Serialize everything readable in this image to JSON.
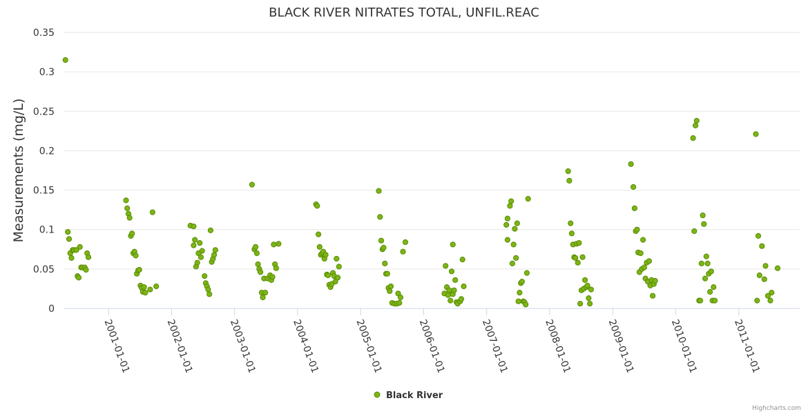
{
  "chart_data": {
    "type": "scatter",
    "title": "BLACK RIVER NITRATES TOTAL, UNFIL.REAC",
    "ylabel": "Measurements (mg/L)",
    "xlabel": "",
    "ylim": [
      0,
      0.35
    ],
    "yticks": [
      "0",
      "0.05",
      "0.1",
      "0.15",
      "0.2",
      "0.25",
      "0.3",
      "0.35"
    ],
    "xticks": [
      "2001-01-01",
      "2002-01-01",
      "2003-01-01",
      "2004-01-01",
      "2005-01-01",
      "2006-01-01",
      "2007-01-01",
      "2008-01-01",
      "2009-01-01",
      "2010-01-01",
      "2011-01-01"
    ],
    "xrange": [
      "2000-04-15",
      "2011-12-20"
    ],
    "grid": true,
    "legend_position": "bottom-center",
    "series": [
      {
        "name": "Black River",
        "color": "#7cb518",
        "points": [
          [
            "2000-04-26",
            0.315
          ],
          [
            "2000-05-10",
            0.097
          ],
          [
            "2000-05-17",
            0.088
          ],
          [
            "2000-05-24",
            0.07
          ],
          [
            "2000-05-31",
            0.064
          ],
          [
            "2000-06-07",
            0.074
          ],
          [
            "2000-06-14",
            0.074
          ],
          [
            "2000-06-28",
            0.074
          ],
          [
            "2000-07-05",
            0.041
          ],
          [
            "2000-07-12",
            0.039
          ],
          [
            "2000-07-19",
            0.078
          ],
          [
            "2000-07-26",
            0.052
          ],
          [
            "2000-08-02",
            0.052
          ],
          [
            "2000-08-16",
            0.052
          ],
          [
            "2000-08-23",
            0.049
          ],
          [
            "2000-08-30",
            0.07
          ],
          [
            "2000-09-06",
            0.065
          ],
          [
            "2001-04-12",
            0.137
          ],
          [
            "2001-04-19",
            0.127
          ],
          [
            "2001-04-26",
            0.12
          ],
          [
            "2001-05-03",
            0.115
          ],
          [
            "2001-05-10",
            0.092
          ],
          [
            "2001-05-17",
            0.095
          ],
          [
            "2001-05-24",
            0.07
          ],
          [
            "2001-05-31",
            0.072
          ],
          [
            "2001-06-07",
            0.067
          ],
          [
            "2001-06-14",
            0.044
          ],
          [
            "2001-06-21",
            0.048
          ],
          [
            "2001-06-28",
            0.049
          ],
          [
            "2001-07-05",
            0.029
          ],
          [
            "2001-07-12",
            0.026
          ],
          [
            "2001-07-19",
            0.021
          ],
          [
            "2001-07-26",
            0.027
          ],
          [
            "2001-08-02",
            0.02
          ],
          [
            "2001-08-30",
            0.024
          ],
          [
            "2001-09-13",
            0.122
          ],
          [
            "2001-10-04",
            0.028
          ],
          [
            "2002-04-20",
            0.105
          ],
          [
            "2002-05-09",
            0.104
          ],
          [
            "2002-05-09",
            0.08
          ],
          [
            "2002-05-16",
            0.087
          ],
          [
            "2002-05-23",
            0.053
          ],
          [
            "2002-05-30",
            0.058
          ],
          [
            "2002-06-06",
            0.07
          ],
          [
            "2002-06-13",
            0.083
          ],
          [
            "2002-06-20",
            0.065
          ],
          [
            "2002-06-27",
            0.073
          ],
          [
            "2002-07-11",
            0.041
          ],
          [
            "2002-07-18",
            0.032
          ],
          [
            "2002-07-25",
            0.028
          ],
          [
            "2002-08-01",
            0.024
          ],
          [
            "2002-08-08",
            0.018
          ],
          [
            "2002-08-15",
            0.099
          ],
          [
            "2002-08-22",
            0.059
          ],
          [
            "2002-08-29",
            0.063
          ],
          [
            "2002-09-05",
            0.068
          ],
          [
            "2002-09-12",
            0.074
          ],
          [
            "2003-04-12",
            0.157
          ],
          [
            "2003-04-26",
            0.075
          ],
          [
            "2003-05-03",
            0.078
          ],
          [
            "2003-05-10",
            0.07
          ],
          [
            "2003-05-17",
            0.056
          ],
          [
            "2003-05-24",
            0.05
          ],
          [
            "2003-05-31",
            0.046
          ],
          [
            "2003-06-07",
            0.02
          ],
          [
            "2003-06-14",
            0.014
          ],
          [
            "2003-06-21",
            0.038
          ],
          [
            "2003-06-28",
            0.02
          ],
          [
            "2003-07-12",
            0.038
          ],
          [
            "2003-07-26",
            0.042
          ],
          [
            "2003-08-02",
            0.036
          ],
          [
            "2003-08-09",
            0.04
          ],
          [
            "2003-08-16",
            0.081
          ],
          [
            "2003-08-23",
            0.056
          ],
          [
            "2003-08-30",
            0.051
          ],
          [
            "2003-09-13",
            0.082
          ],
          [
            "2004-04-17",
            0.132
          ],
          [
            "2004-04-24",
            0.13
          ],
          [
            "2004-05-01",
            0.094
          ],
          [
            "2004-05-08",
            0.078
          ],
          [
            "2004-05-15",
            0.068
          ],
          [
            "2004-05-22",
            0.07
          ],
          [
            "2004-05-29",
            0.072
          ],
          [
            "2004-06-05",
            0.063
          ],
          [
            "2004-06-12",
            0.068
          ],
          [
            "2004-06-19",
            0.043
          ],
          [
            "2004-06-26",
            0.042
          ],
          [
            "2004-07-03",
            0.03
          ],
          [
            "2004-07-10",
            0.027
          ],
          [
            "2004-07-17",
            0.031
          ],
          [
            "2004-07-24",
            0.045
          ],
          [
            "2004-07-31",
            0.041
          ],
          [
            "2004-08-07",
            0.034
          ],
          [
            "2004-08-14",
            0.063
          ],
          [
            "2004-08-21",
            0.039
          ],
          [
            "2004-08-28",
            0.053
          ],
          [
            "2005-04-16",
            0.149
          ],
          [
            "2005-04-23",
            0.116
          ],
          [
            "2005-04-30",
            0.086
          ],
          [
            "2005-05-07",
            0.075
          ],
          [
            "2005-05-14",
            0.077
          ],
          [
            "2005-05-21",
            0.057
          ],
          [
            "2005-05-28",
            0.044
          ],
          [
            "2005-06-04",
            0.044
          ],
          [
            "2005-06-11",
            0.026
          ],
          [
            "2005-06-18",
            0.022
          ],
          [
            "2005-06-25",
            0.028
          ],
          [
            "2005-07-02",
            0.007
          ],
          [
            "2005-07-16",
            0.006
          ],
          [
            "2005-07-30",
            0.006
          ],
          [
            "2005-08-06",
            0.019
          ],
          [
            "2005-08-13",
            0.007
          ],
          [
            "2005-08-20",
            0.014
          ],
          [
            "2005-09-03",
            0.072
          ],
          [
            "2005-09-17",
            0.084
          ],
          [
            "2006-05-01",
            0.019
          ],
          [
            "2006-05-08",
            0.054
          ],
          [
            "2006-05-15",
            0.027
          ],
          [
            "2006-05-22",
            0.017
          ],
          [
            "2006-05-29",
            0.023
          ],
          [
            "2006-06-05",
            0.01
          ],
          [
            "2006-06-12",
            0.047
          ],
          [
            "2006-06-19",
            0.081
          ],
          [
            "2006-06-19",
            0.018
          ],
          [
            "2006-06-26",
            0.023
          ],
          [
            "2006-07-03",
            0.036
          ],
          [
            "2006-07-10",
            0.008
          ],
          [
            "2006-07-17",
            0.006
          ],
          [
            "2006-07-31",
            0.009
          ],
          [
            "2006-08-07",
            0.012
          ],
          [
            "2006-08-14",
            0.062
          ],
          [
            "2006-08-21",
            0.028
          ],
          [
            "2007-04-25",
            0.106
          ],
          [
            "2007-05-02",
            0.114
          ],
          [
            "2007-05-02",
            0.087
          ],
          [
            "2007-05-16",
            0.13
          ],
          [
            "2007-05-23",
            0.136
          ],
          [
            "2007-05-30",
            0.057
          ],
          [
            "2007-06-06",
            0.081
          ],
          [
            "2007-06-13",
            0.101
          ],
          [
            "2007-06-20",
            0.064
          ],
          [
            "2007-06-27",
            0.108
          ],
          [
            "2007-07-04",
            0.009
          ],
          [
            "2007-07-11",
            0.02
          ],
          [
            "2007-07-18",
            0.032
          ],
          [
            "2007-07-25",
            0.034
          ],
          [
            "2007-08-01",
            0.009
          ],
          [
            "2007-08-08",
            0.008
          ],
          [
            "2007-08-15",
            0.005
          ],
          [
            "2007-08-22",
            0.045
          ],
          [
            "2007-08-29",
            0.139
          ],
          [
            "2008-04-17",
            0.174
          ],
          [
            "2008-04-24",
            0.162
          ],
          [
            "2008-05-01",
            0.108
          ],
          [
            "2008-05-08",
            0.095
          ],
          [
            "2008-05-15",
            0.081
          ],
          [
            "2008-05-22",
            0.065
          ],
          [
            "2008-05-29",
            0.064
          ],
          [
            "2008-06-05",
            0.082
          ],
          [
            "2008-06-12",
            0.058
          ],
          [
            "2008-06-19",
            0.083
          ],
          [
            "2008-06-26",
            0.006
          ],
          [
            "2008-07-03",
            0.023
          ],
          [
            "2008-07-10",
            0.065
          ],
          [
            "2008-07-17",
            0.025
          ],
          [
            "2008-07-24",
            0.036
          ],
          [
            "2008-07-31",
            0.027
          ],
          [
            "2008-08-07",
            0.029
          ],
          [
            "2008-08-14",
            0.013
          ],
          [
            "2008-08-21",
            0.006
          ],
          [
            "2008-08-28",
            0.024
          ],
          [
            "2009-04-16",
            0.183
          ],
          [
            "2009-04-30",
            0.154
          ],
          [
            "2009-05-07",
            0.127
          ],
          [
            "2009-05-14",
            0.098
          ],
          [
            "2009-05-21",
            0.1
          ],
          [
            "2009-05-28",
            0.071
          ],
          [
            "2009-06-04",
            0.046
          ],
          [
            "2009-06-11",
            0.07
          ],
          [
            "2009-06-18",
            0.05
          ],
          [
            "2009-06-25",
            0.087
          ],
          [
            "2009-07-02",
            0.052
          ],
          [
            "2009-07-09",
            0.038
          ],
          [
            "2009-07-16",
            0.058
          ],
          [
            "2009-07-23",
            0.034
          ],
          [
            "2009-07-30",
            0.06
          ],
          [
            "2009-08-06",
            0.029
          ],
          [
            "2009-08-13",
            0.036
          ],
          [
            "2009-08-20",
            0.016
          ],
          [
            "2009-08-27",
            0.031
          ],
          [
            "2009-09-03",
            0.035
          ],
          [
            "2010-04-11",
            0.216
          ],
          [
            "2010-04-18",
            0.098
          ],
          [
            "2010-04-25",
            0.232
          ],
          [
            "2010-05-02",
            0.238
          ],
          [
            "2010-05-16",
            0.01
          ],
          [
            "2010-05-23",
            0.01
          ],
          [
            "2010-05-30",
            0.057
          ],
          [
            "2010-06-06",
            0.118
          ],
          [
            "2010-06-13",
            0.107
          ],
          [
            "2010-06-20",
            0.038
          ],
          [
            "2010-06-27",
            0.066
          ],
          [
            "2010-07-04",
            0.057
          ],
          [
            "2010-07-11",
            0.044
          ],
          [
            "2010-07-18",
            0.021
          ],
          [
            "2010-07-25",
            0.047
          ],
          [
            "2010-08-01",
            0.01
          ],
          [
            "2010-08-08",
            0.027
          ],
          [
            "2010-08-15",
            0.01
          ],
          [
            "2011-04-10",
            0.221
          ],
          [
            "2011-04-17",
            0.01
          ],
          [
            "2011-04-24",
            0.092
          ],
          [
            "2011-05-01",
            0.042
          ],
          [
            "2011-05-15",
            0.079
          ],
          [
            "2011-05-29",
            0.037
          ],
          [
            "2011-06-05",
            0.054
          ],
          [
            "2011-06-19",
            0.016
          ],
          [
            "2011-07-03",
            0.01
          ],
          [
            "2011-07-10",
            0.02
          ],
          [
            "2011-08-14",
            0.051
          ]
        ]
      }
    ]
  },
  "credit": "Highcharts.com"
}
